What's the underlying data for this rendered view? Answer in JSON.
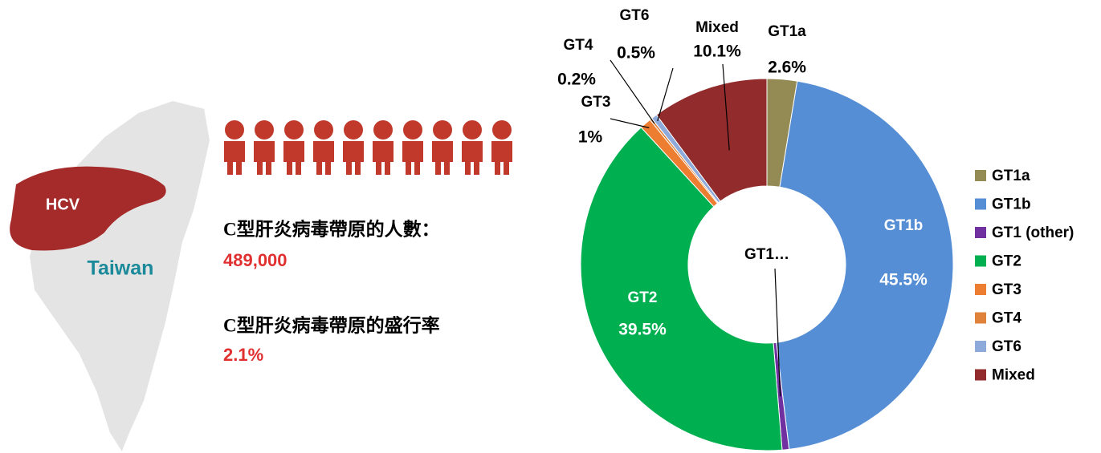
{
  "infographic": {
    "liver_label": "HCV",
    "region": "Taiwan",
    "carriers_label": "C型肝炎病毒帶原的人數：",
    "carriers": "489,000",
    "prevalence_label": "C型肝炎病毒帶原的盛行率",
    "prevalence": "2.1%"
  },
  "chart_data": {
    "type": "donut",
    "categories": [
      "GT1a",
      "GT1b",
      "GT1 (other)",
      "GT2",
      "GT3",
      "GT4",
      "GT6",
      "Mixed"
    ],
    "category_labels": [
      "GT1a",
      "GT1b",
      "GT1…",
      "GT2",
      "GT3",
      "GT4",
      "GT6",
      "Mixed"
    ],
    "values": [
      2.6,
      45.5,
      0.6,
      39.5,
      1,
      0.2,
      0.5,
      10.1
    ],
    "value_labels": [
      "2.6%",
      "45.5%",
      null,
      "39.5%",
      "1%",
      "0.2%",
      "0.5%",
      "10.1%"
    ],
    "colors": [
      "#948a54",
      "#558ed5",
      "#7030a0",
      "#00b050",
      "#ed7d31",
      "#e0823a",
      "#8eaadb",
      "#922b2b"
    ],
    "legend": "right"
  }
}
